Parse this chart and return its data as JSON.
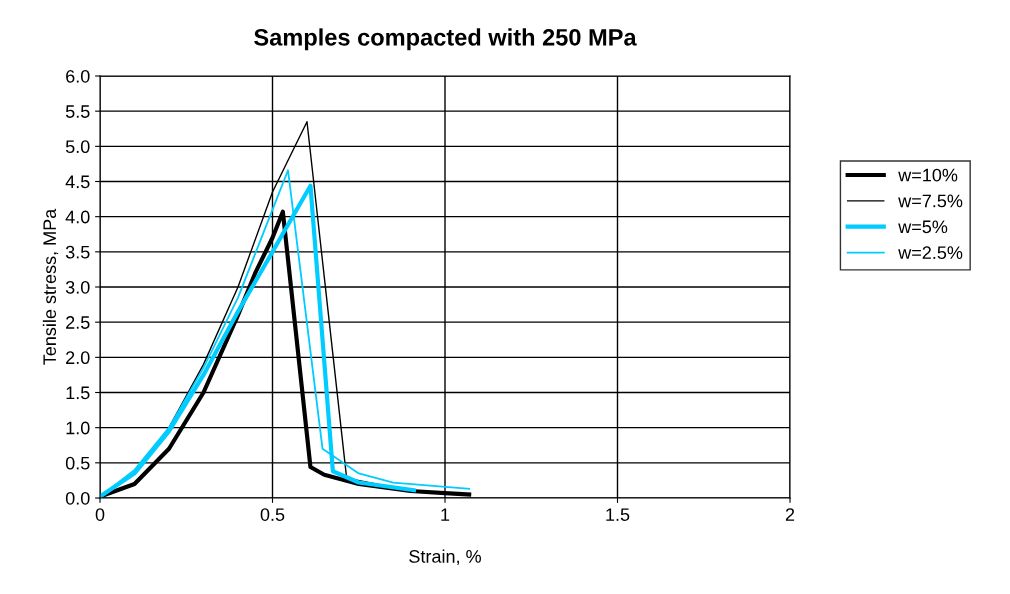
{
  "chart_data": {
    "type": "line",
    "title": "Samples compacted with 250 MPa",
    "xlabel": "Strain, %",
    "ylabel": "Tensile stress, MPa",
    "xlim": [
      0,
      2
    ],
    "xticks": [
      0,
      0.5,
      1,
      1.5,
      2
    ],
    "ylim": [
      0,
      6
    ],
    "yticks": [
      {
        "value": 0,
        "label": "0.0"
      },
      {
        "value": 0.5,
        "label": "0.5"
      },
      {
        "value": 1,
        "label": "1.0"
      },
      {
        "value": 1.5,
        "label": "1.5"
      },
      {
        "value": 2,
        "label": "2.0"
      },
      {
        "value": 2.5,
        "label": "2.5"
      },
      {
        "value": 3,
        "label": "3.0"
      },
      {
        "value": 3.5,
        "label": "3.5"
      },
      {
        "value": 4,
        "label": "4.0"
      },
      {
        "value": 4.5,
        "label": "4.5"
      },
      {
        "value": 5,
        "label": "5.0"
      },
      {
        "value": 5.5,
        "label": "5.5"
      },
      {
        "value": 6,
        "label": "6.0"
      }
    ],
    "grid": true,
    "legend": "right",
    "marker": "none",
    "line_style": "solid",
    "series": [
      {
        "name": "w=10%",
        "color": "#000000",
        "x": [
          0,
          0.1,
          0.2,
          0.3,
          0.4,
          0.45,
          0.5,
          0.53,
          0.61,
          0.65,
          0.75,
          0.9,
          1.0,
          1.07
        ],
        "values": [
          0.02,
          0.2,
          0.7,
          1.5,
          2.6,
          3.2,
          3.7,
          4.07,
          0.44,
          0.33,
          0.2,
          0.1,
          0.07,
          0.05
        ]
      },
      {
        "name": "w=7.5%",
        "color": "#000000",
        "x": [
          0,
          0.1,
          0.2,
          0.3,
          0.4,
          0.5,
          0.6,
          0.715,
          0.8,
          0.85
        ],
        "values": [
          0.02,
          0.35,
          1.0,
          1.9,
          3.0,
          4.35,
          5.35,
          0.28,
          0.2,
          0.15
        ]
      },
      {
        "name": "w=5%",
        "color": "#00ccff",
        "x": [
          0,
          0.1,
          0.2,
          0.3,
          0.4,
          0.5,
          0.61,
          0.675,
          0.75,
          0.91
        ],
        "values": [
          0.02,
          0.35,
          0.95,
          1.75,
          2.65,
          3.5,
          4.44,
          0.38,
          0.22,
          0.11
        ]
      },
      {
        "name": "w=2.5%",
        "color": "#00ccff",
        "x": [
          0,
          0.1,
          0.2,
          0.3,
          0.4,
          0.5,
          0.545,
          0.645,
          0.75,
          0.85,
          1.07
        ],
        "values": [
          0.02,
          0.4,
          1.0,
          1.85,
          2.85,
          4.1,
          4.66,
          0.7,
          0.35,
          0.22,
          0.13
        ]
      }
    ]
  }
}
